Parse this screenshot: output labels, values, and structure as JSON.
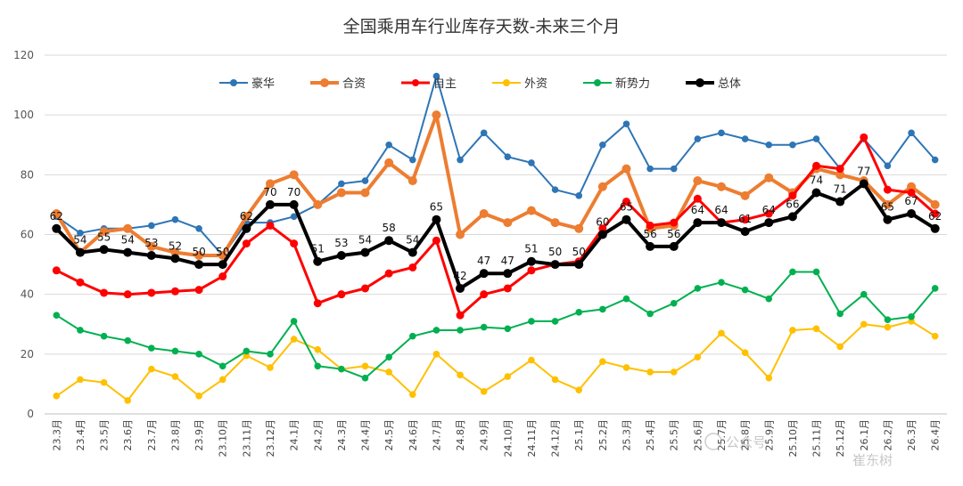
{
  "chart_data": {
    "type": "line",
    "title": "全国乘用车行业库存天数-未来三个月",
    "xlabel": "",
    "ylabel": "",
    "ylim": [
      0,
      120
    ],
    "yticks": [
      "0",
      "20",
      "40",
      "60",
      "80",
      "100",
      "120"
    ],
    "grid": true,
    "legend_position": "top",
    "categories": [
      "23.3月",
      "23.4月",
      "23.5月",
      "23.6月",
      "23.7月",
      "23.8月",
      "23.9月",
      "23.10月",
      "23.11月",
      "23.12月",
      "24.1月",
      "24.2月",
      "24.3月",
      "24.4月",
      "24.5月",
      "24.6月",
      "24.7月",
      "24.8月",
      "24.9月",
      "24.10月",
      "24.11月",
      "24.12月",
      "25.1月",
      "25.2月",
      "25.3月",
      "25.4月",
      "25.5月",
      "25.6月",
      "25.7月",
      "25.8月",
      "25.9月",
      "25.10月",
      "25.11月",
      "25.12月",
      "26.1月",
      "26.2月",
      "26.3月",
      "26.4月"
    ],
    "series": [
      {
        "name": "豪华",
        "color": "#2e75b6",
        "width": 2,
        "values": [
          66,
          60.5,
          62,
          62,
          63,
          65,
          62,
          53,
          64,
          64,
          66,
          70,
          77,
          78,
          90,
          85,
          113,
          85,
          94,
          86,
          84,
          75,
          73,
          90,
          97,
          82,
          82,
          92,
          94,
          92,
          90,
          90,
          92,
          82,
          92,
          83,
          94,
          85
        ]
      },
      {
        "name": "合资",
        "color": "#ed7d31",
        "width": 4,
        "values": [
          67,
          54,
          61,
          62,
          56,
          54,
          53,
          53,
          66,
          77,
          80,
          70,
          74,
          74,
          84,
          78,
          100,
          60,
          67,
          64,
          68,
          64,
          62,
          76,
          82,
          62,
          63,
          78,
          76,
          73,
          79,
          74,
          82,
          80,
          78,
          70,
          76,
          70
        ]
      },
      {
        "name": "自主",
        "color": "#ff0000",
        "width": 3,
        "values": [
          48,
          44,
          40.5,
          40,
          40.5,
          41,
          41.5,
          46,
          57,
          63,
          57,
          37,
          40,
          42,
          47,
          49,
          58,
          33,
          40,
          42,
          48,
          50,
          51,
          62,
          71,
          63,
          64,
          72,
          64,
          65,
          67,
          73,
          83,
          82,
          92.5,
          75,
          74,
          67
        ]
      },
      {
        "name": "外资",
        "color": "#ffc000",
        "width": 2,
        "values": [
          6,
          11.5,
          10.5,
          4.5,
          15,
          12.5,
          6,
          11.5,
          19.5,
          15.5,
          25,
          21.5,
          15,
          16,
          14,
          6.5,
          20,
          13,
          7.5,
          12.5,
          18,
          11.5,
          8,
          17.5,
          15.5,
          14,
          14,
          19,
          27,
          20.5,
          12,
          28,
          28.5,
          22.5,
          30,
          29,
          31,
          26
        ]
      },
      {
        "name": "新势力",
        "color": "#00b050",
        "width": 2,
        "values": [
          33,
          28,
          26,
          24.5,
          22,
          21,
          20,
          16,
          21,
          20,
          31,
          16,
          15,
          12,
          19,
          26,
          28,
          28,
          29,
          28.5,
          31,
          31,
          34,
          35,
          38.5,
          33.5,
          37,
          42,
          44,
          41.5,
          38.5,
          47.5,
          47.5,
          33.5,
          40,
          31.5,
          32.5,
          42
        ]
      },
      {
        "name": "总体",
        "color": "#000000",
        "width": 4,
        "values": [
          62,
          54,
          55,
          54,
          53,
          52,
          50,
          50,
          62,
          70,
          70,
          51,
          53,
          54,
          58,
          54,
          65,
          42,
          47,
          47,
          51,
          50,
          50,
          60,
          65,
          56,
          56,
          64,
          64,
          61,
          64,
          66,
          74,
          71,
          77,
          65,
          67,
          62
        ]
      }
    ],
    "data_labels": [
      {
        "series": "总体",
        "labels": [
          "62",
          "54",
          "55",
          "54",
          "53",
          "52",
          "50",
          "50",
          "62",
          "70",
          "70",
          "51",
          "53",
          "54",
          "58",
          "54",
          "65",
          "42",
          "47",
          "47",
          "51",
          "50",
          "50",
          "60",
          "65",
          "56",
          "56",
          "64",
          "64",
          "61",
          "64",
          "66",
          "74",
          "71",
          "77",
          "65",
          "67",
          "62"
        ]
      }
    ]
  },
  "watermark": {
    "brand": "公众号",
    "name": "崔东树"
  }
}
